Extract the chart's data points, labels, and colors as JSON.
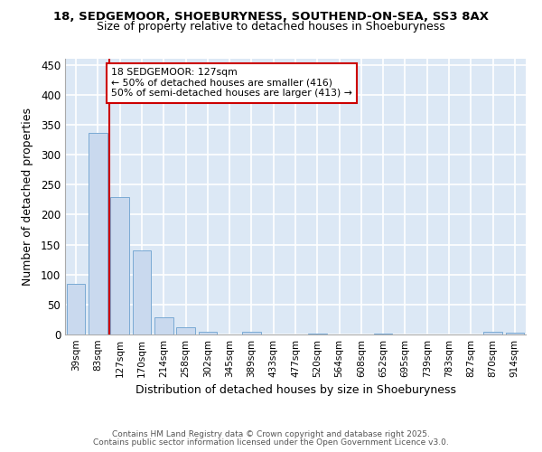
{
  "title1": "18, SEDGEMOOR, SHOEBURYNESS, SOUTHEND-ON-SEA, SS3 8AX",
  "title2": "Size of property relative to detached houses in Shoeburyness",
  "xlabel": "Distribution of detached houses by size in Shoeburyness",
  "ylabel": "Number of detached properties",
  "bar_color": "#c9d9ee",
  "bar_edge_color": "#7aaad4",
  "bg_color": "#dce8f5",
  "grid_color": "#ffffff",
  "categories": [
    "39sqm",
    "83sqm",
    "127sqm",
    "170sqm",
    "214sqm",
    "258sqm",
    "302sqm",
    "345sqm",
    "389sqm",
    "433sqm",
    "477sqm",
    "520sqm",
    "564sqm",
    "608sqm",
    "652sqm",
    "695sqm",
    "739sqm",
    "783sqm",
    "827sqm",
    "870sqm",
    "914sqm"
  ],
  "values": [
    84,
    337,
    230,
    140,
    29,
    12,
    4,
    0,
    5,
    0,
    0,
    1,
    0,
    0,
    1,
    0,
    0,
    0,
    0,
    4,
    3
  ],
  "vline_x": 2.5,
  "vline_color": "#cc0000",
  "annotation_text": "18 SEDGEMOOR: 127sqm\n← 50% of detached houses are smaller (416)\n50% of semi-detached houses are larger (413) →",
  "annotation_box_color": "#ffffff",
  "annotation_box_edge": "#cc0000",
  "ylim": [
    0,
    460
  ],
  "yticks": [
    0,
    50,
    100,
    150,
    200,
    250,
    300,
    350,
    400,
    450
  ],
  "footer1": "Contains HM Land Registry data © Crown copyright and database right 2025.",
  "footer2": "Contains public sector information licensed under the Open Government Licence v3.0."
}
